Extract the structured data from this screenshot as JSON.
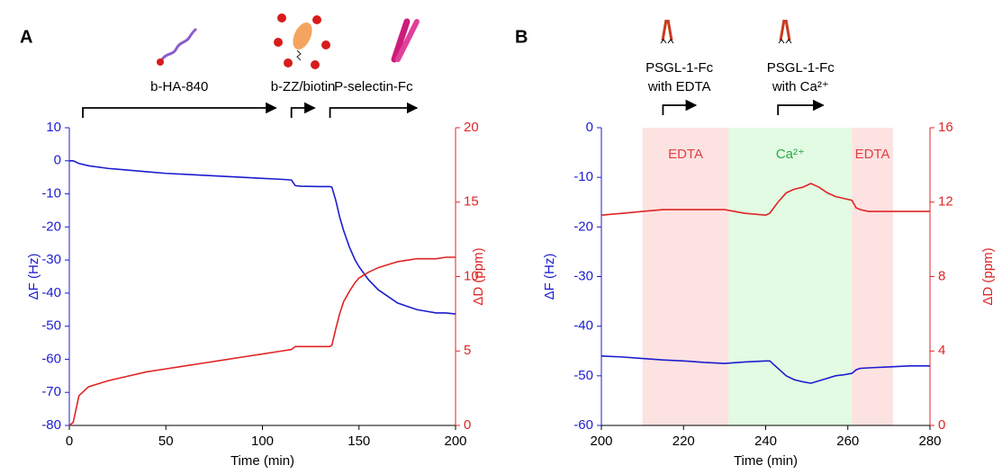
{
  "chart_data": [
    {
      "type": "line",
      "panel": "A",
      "x_label": "Time (min)",
      "y_label": "ΔF (Hz)",
      "y2_label": "ΔD (ppm)",
      "xlim": [
        0,
        200
      ],
      "xticks": [
        0,
        50,
        100,
        150,
        200
      ],
      "ylim": [
        -80,
        10
      ],
      "yticks": [
        -80,
        -70,
        -60,
        -50,
        -40,
        -30,
        -20,
        -10,
        0,
        10
      ],
      "y2lim": [
        0,
        20
      ],
      "y2ticks": [
        0,
        5,
        10,
        15,
        20
      ],
      "x": [
        0,
        2,
        5,
        10,
        20,
        30,
        40,
        50,
        60,
        70,
        80,
        90,
        100,
        110,
        115,
        117,
        120,
        130,
        135,
        136,
        138,
        140,
        142,
        145,
        148,
        150,
        155,
        160,
        165,
        170,
        175,
        180,
        185,
        190,
        195,
        200
      ],
      "series": [
        {
          "color": "#1c1cd0",
          "axis": "y",
          "values": [
            0,
            0,
            -0.8,
            -1.5,
            -2.3,
            -2.8,
            -3.3,
            -3.8,
            -4.1,
            -4.4,
            -4.7,
            -5,
            -5.3,
            -5.6,
            -5.8,
            -7.5,
            -7.7,
            -7.8,
            -7.8,
            -8,
            -12,
            -17,
            -21,
            -26,
            -30,
            -32,
            -36,
            -39,
            -41,
            -43,
            -44,
            -45,
            -45.5,
            -46,
            -46,
            -46.3
          ]
        },
        {
          "color": "#e02424",
          "axis": "y2",
          "values": [
            0,
            0.2,
            2,
            2.6,
            3.0,
            3.3,
            3.6,
            3.8,
            4.0,
            4.2,
            4.4,
            4.6,
            4.8,
            5.0,
            5.1,
            5.3,
            5.3,
            5.3,
            5.3,
            5.4,
            6.5,
            7.5,
            8.3,
            9.0,
            9.6,
            9.9,
            10.3,
            10.6,
            10.8,
            11.0,
            11.1,
            11.2,
            11.2,
            11.2,
            11.3,
            11.3
          ]
        }
      ],
      "annotations": [
        {
          "text": "b-HA-840",
          "span": [
            7,
            107
          ]
        },
        {
          "text": "b-ZZ/biotin",
          "span": [
            115,
            127
          ]
        },
        {
          "text": "P-selectin-Fc",
          "span": [
            135,
            180
          ]
        }
      ]
    },
    {
      "type": "line",
      "panel": "B",
      "x_label": "Time (min)",
      "y_label": "ΔF (Hz)",
      "y2_label": "ΔD (ppm)",
      "xlim": [
        200,
        280
      ],
      "xticks": [
        200,
        220,
        240,
        260,
        280
      ],
      "ylim": [
        -60,
        0
      ],
      "yticks": [
        -60,
        -50,
        -40,
        -30,
        -20,
        -10,
        0
      ],
      "y2lim": [
        0,
        16
      ],
      "y2ticks": [
        0,
        4,
        8,
        12,
        16
      ],
      "regions": [
        {
          "label": "EDTA",
          "start": 210,
          "end": 231,
          "color": "#fde2e2",
          "label_color": "#e04040"
        },
        {
          "label": "Ca²⁺",
          "start": 231,
          "end": 261,
          "color": "#e2fbe2",
          "label_color": "#2aa84a"
        },
        {
          "label": "EDTA",
          "start": 261,
          "end": 271,
          "color": "#fde2e2",
          "label_color": "#e04040"
        }
      ],
      "x": [
        200,
        205,
        210,
        215,
        220,
        225,
        230,
        235,
        240,
        241,
        243,
        245,
        247,
        249,
        251,
        253,
        255,
        257,
        259,
        261,
        262,
        263,
        265,
        270,
        275,
        280
      ],
      "series": [
        {
          "color": "#1c1cd0",
          "axis": "y",
          "values": [
            -46,
            -46.2,
            -46.5,
            -46.8,
            -47,
            -47.3,
            -47.5,
            -47.2,
            -47,
            -47,
            -48.5,
            -50,
            -50.8,
            -51.2,
            -51.5,
            -51,
            -50.5,
            -50,
            -49.8,
            -49.5,
            -48.8,
            -48.5,
            -48.4,
            -48.2,
            -48,
            -48
          ]
        },
        {
          "color": "#e02424",
          "axis": "y2",
          "values": [
            11.3,
            11.4,
            11.5,
            11.6,
            11.6,
            11.6,
            11.6,
            11.4,
            11.3,
            11.4,
            12.0,
            12.5,
            12.7,
            12.8,
            13.0,
            12.8,
            12.5,
            12.3,
            12.2,
            12.1,
            11.7,
            11.6,
            11.5,
            11.5,
            11.5,
            11.5
          ]
        }
      ],
      "annotations": [
        {
          "text": [
            "PSGL-1-Fc",
            "with EDTA"
          ],
          "span": [
            215,
            223
          ]
        },
        {
          "text": [
            "PSGL-1-Fc",
            "with Ca²⁺"
          ],
          "span": [
            243,
            254
          ]
        }
      ]
    }
  ]
}
